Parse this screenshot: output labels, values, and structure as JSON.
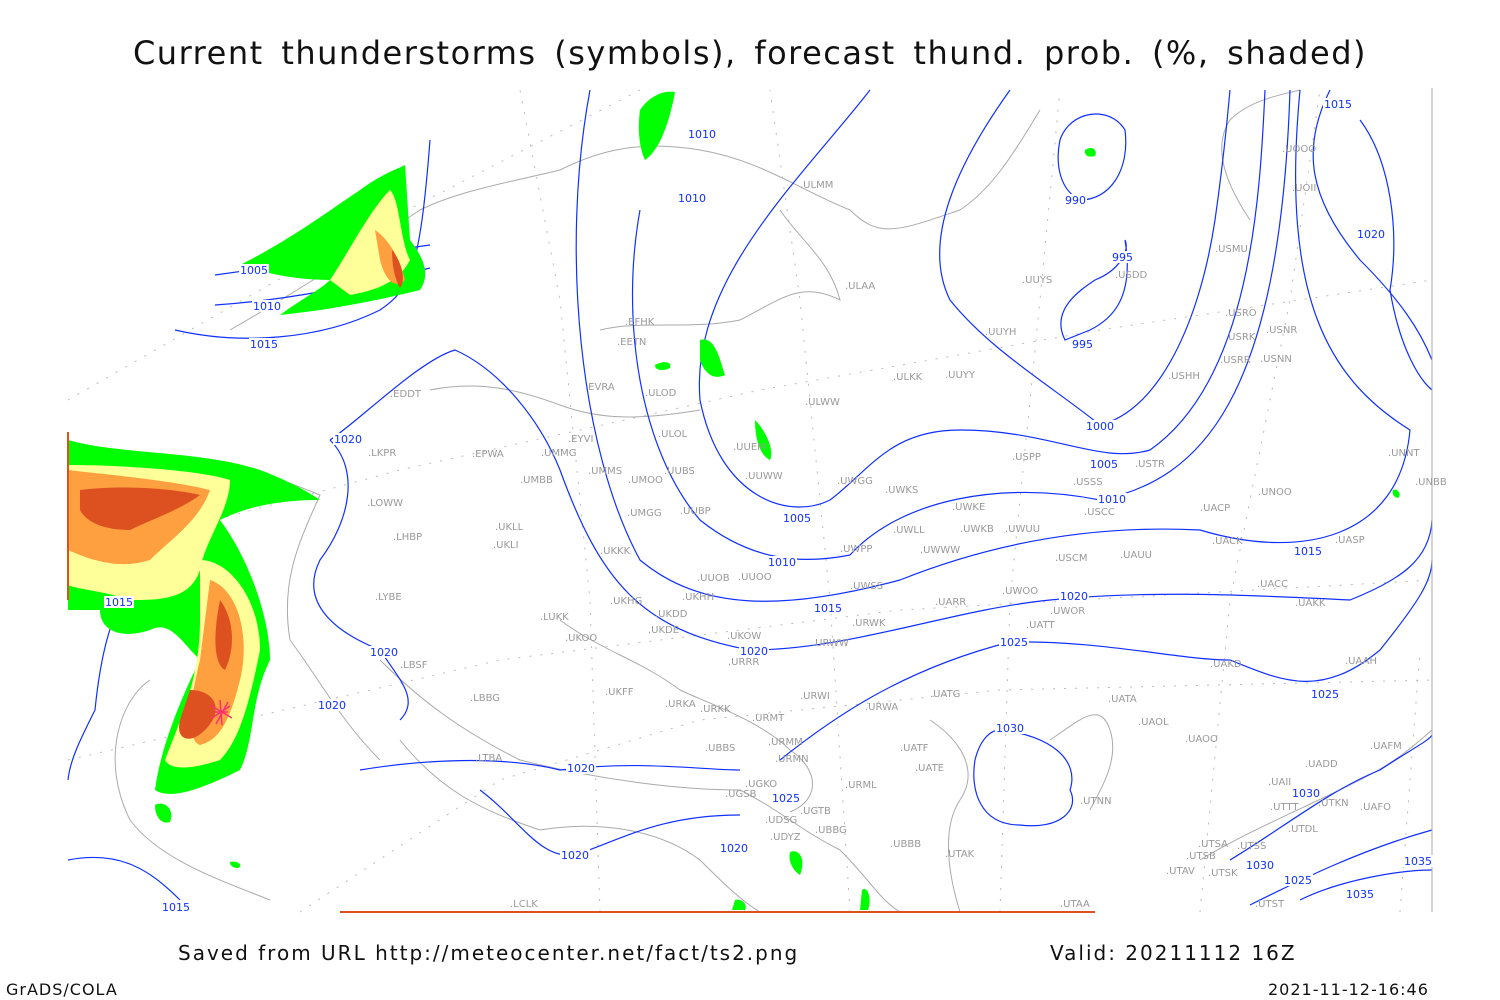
{
  "title": "Current thunderstorms (symbols), forecast thund. prob. (%, shaded)",
  "footer": {
    "source": "Saved from URL http://meteocenter.net/fact/ts2.png",
    "valid": "Valid: 20211112 16Z",
    "software": "GrADS/COLA",
    "timestamp": "2021-11-12-16:46"
  },
  "colors": {
    "isobar": "#1030ff",
    "coastline": "#aaaaaa",
    "prob_low": "#00ff00",
    "prob_mid": "#ffff99",
    "prob_high": "#ffa040",
    "prob_max": "#dd5020",
    "thunderstorm_symbol": "#ff3070"
  },
  "map": {
    "stations": [
      "EFHK",
      "EETN",
      "EVRA",
      "ULOD",
      "ULOL",
      "ULWW",
      "UUEM",
      "UUWW",
      "EYVI",
      "UMMG",
      "EPWA",
      "EDDT",
      "LKPR",
      "LOWW",
      "LHBP",
      "UMBB",
      "UMMS",
      "UMOO",
      "UUBS",
      "UMGG",
      "UUBP",
      "UKLL",
      "UKLI",
      "UKKK",
      "UUOO",
      "UUOB",
      "UKHG",
      "UKDD",
      "UKHH",
      "UKDE",
      "UKOW",
      "URRR",
      "LUKK",
      "UKOO",
      "LYBE",
      "LBSF",
      "LBBG",
      "UKFF",
      "URKA",
      "URKK",
      "URMT",
      "URWI",
      "URWA",
      "UBBS",
      "URMM",
      "URMN",
      "UGKO",
      "UGSB",
      "UGTB",
      "UDSG",
      "UBBG",
      "UDYZ",
      "UBBB",
      "URML",
      "UATE",
      "UATF",
      "LTBA",
      "LCLK",
      "UTAK",
      "UTAA",
      "UAOO",
      "UAOL",
      "UATA",
      "UATG",
      "UTNN",
      "UATT",
      "UAKD",
      "UAKK",
      "UAAH",
      "UACC",
      "UWOR",
      "UWOO",
      "UARR",
      "URWK",
      "URWW",
      "UWSS",
      "UWPP",
      "UWWW",
      "UWLL",
      "UWKE",
      "UWKB",
      "UWUU",
      "UWKS",
      "UWGG",
      "ULKK",
      "UUYY",
      "UUYH",
      "UUYS",
      "ULAA",
      "ULMM",
      "USDD",
      "USMU",
      "USRO",
      "USRK",
      "USNR",
      "USRR",
      "USNN",
      "USHH",
      "USPP",
      "USTR",
      "USSS",
      "USCC",
      "USCM",
      "UAUU",
      "UACP",
      "UACK",
      "UASP",
      "UNOO",
      "UNNT",
      "UNBB",
      "UOOO",
      "UOII",
      "UADD",
      "UAFM",
      "UAII",
      "UTTT",
      "UTKN",
      "UAFO",
      "UTDL",
      "UTSA",
      "UTSS",
      "UTSB",
      "UTAV",
      "UTSK",
      "UTST"
    ],
    "isobar_labels": [
      "1010",
      "1010",
      "1005",
      "1010",
      "1015",
      "1020",
      "1015",
      "1020",
      "1020",
      "1020",
      "1020",
      "1020",
      "1025",
      "1015",
      "1020",
      "990",
      "995",
      "995",
      "1000",
      "1005",
      "1010",
      "1005",
      "1010",
      "1015",
      "1015",
      "1020",
      "1020",
      "1025",
      "1025",
      "1030",
      "1030",
      "1030",
      "1025",
      "1035",
      "1035",
      "1015"
    ]
  }
}
